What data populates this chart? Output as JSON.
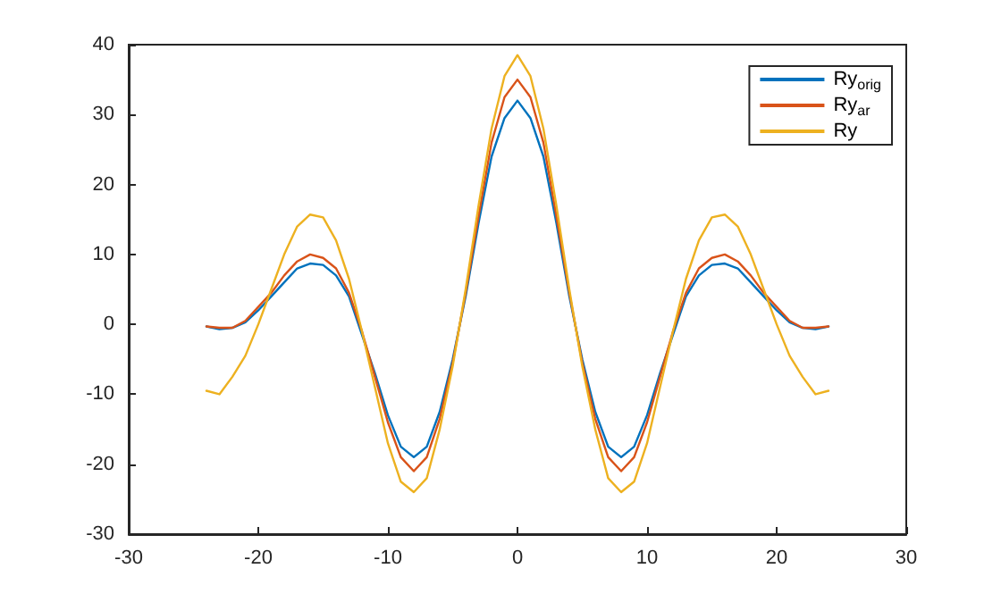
{
  "chart_data": {
    "type": "line",
    "x": [
      -24,
      -23,
      -22,
      -21,
      -20,
      -19,
      -18,
      -17,
      -16,
      -15,
      -14,
      -13,
      -12,
      -11,
      -10,
      -9,
      -8,
      -7,
      -6,
      -5,
      -4,
      -3,
      -2,
      -1,
      0,
      1,
      2,
      3,
      4,
      5,
      6,
      7,
      8,
      9,
      10,
      11,
      12,
      13,
      14,
      15,
      16,
      17,
      18,
      19,
      20,
      21,
      22,
      23,
      24
    ],
    "series": [
      {
        "name": "Ry$_{orig}$",
        "color": "#0072bd",
        "values": [
          -0.3,
          -0.7,
          -0.5,
          0.3,
          2,
          4,
          6,
          8,
          8.7,
          8.5,
          7,
          4,
          -1.5,
          -7,
          -13,
          -17.5,
          -19,
          -17.5,
          -12.5,
          -5,
          4,
          14.5,
          24,
          29.5,
          32,
          29.5,
          24,
          14.5,
          4,
          -5,
          -12.5,
          -17.5,
          -19,
          -17.5,
          -13,
          -7,
          -1.5,
          4,
          7,
          8.5,
          8.7,
          8,
          6,
          4,
          2,
          0.3,
          -0.5,
          -0.7,
          -0.3
        ]
      },
      {
        "name": "Ry$_{ar}$",
        "color": "#d95319",
        "values": [
          -0.3,
          -0.5,
          -0.5,
          0.5,
          2.5,
          4.5,
          7,
          9,
          10,
          9.5,
          8,
          4.5,
          -1,
          -7.5,
          -14,
          -19,
          -21,
          -19,
          -13.5,
          -5.5,
          4.5,
          15.5,
          26,
          32.5,
          35,
          32.5,
          26,
          15.5,
          4.5,
          -5.5,
          -13.5,
          -19,
          -21,
          -19,
          -14,
          -7.5,
          -1,
          4.5,
          8,
          9.5,
          10,
          9,
          7,
          4.5,
          2.5,
          0.5,
          -0.5,
          -0.5,
          -0.3
        ]
      },
      {
        "name": "Ry",
        "color": "#edb120",
        "values": [
          -9.5,
          -10,
          -7.5,
          -4.5,
          0,
          5,
          10,
          14,
          15.7,
          15.3,
          12,
          6.5,
          -1,
          -9,
          -17,
          -22.5,
          -24,
          -22,
          -15,
          -6,
          5,
          17,
          28,
          35.5,
          38.5,
          35.5,
          28,
          17,
          5,
          -6,
          -15,
          -22,
          -24,
          -22.5,
          -17,
          -9,
          -1,
          6.5,
          12,
          15.3,
          15.7,
          14,
          10,
          5,
          0,
          -4.5,
          -7.5,
          -10,
          -9.5
        ]
      }
    ],
    "xlim": [
      -30,
      30
    ],
    "xticks": [
      -30,
      -20,
      -10,
      0,
      10,
      20,
      30
    ],
    "ylim": [
      -30,
      40
    ],
    "yticks": [
      -30,
      -20,
      -10,
      0,
      10,
      20,
      30,
      40
    ],
    "grid": false,
    "legend": "top right",
    "marker": "none",
    "line_style": "solid"
  }
}
